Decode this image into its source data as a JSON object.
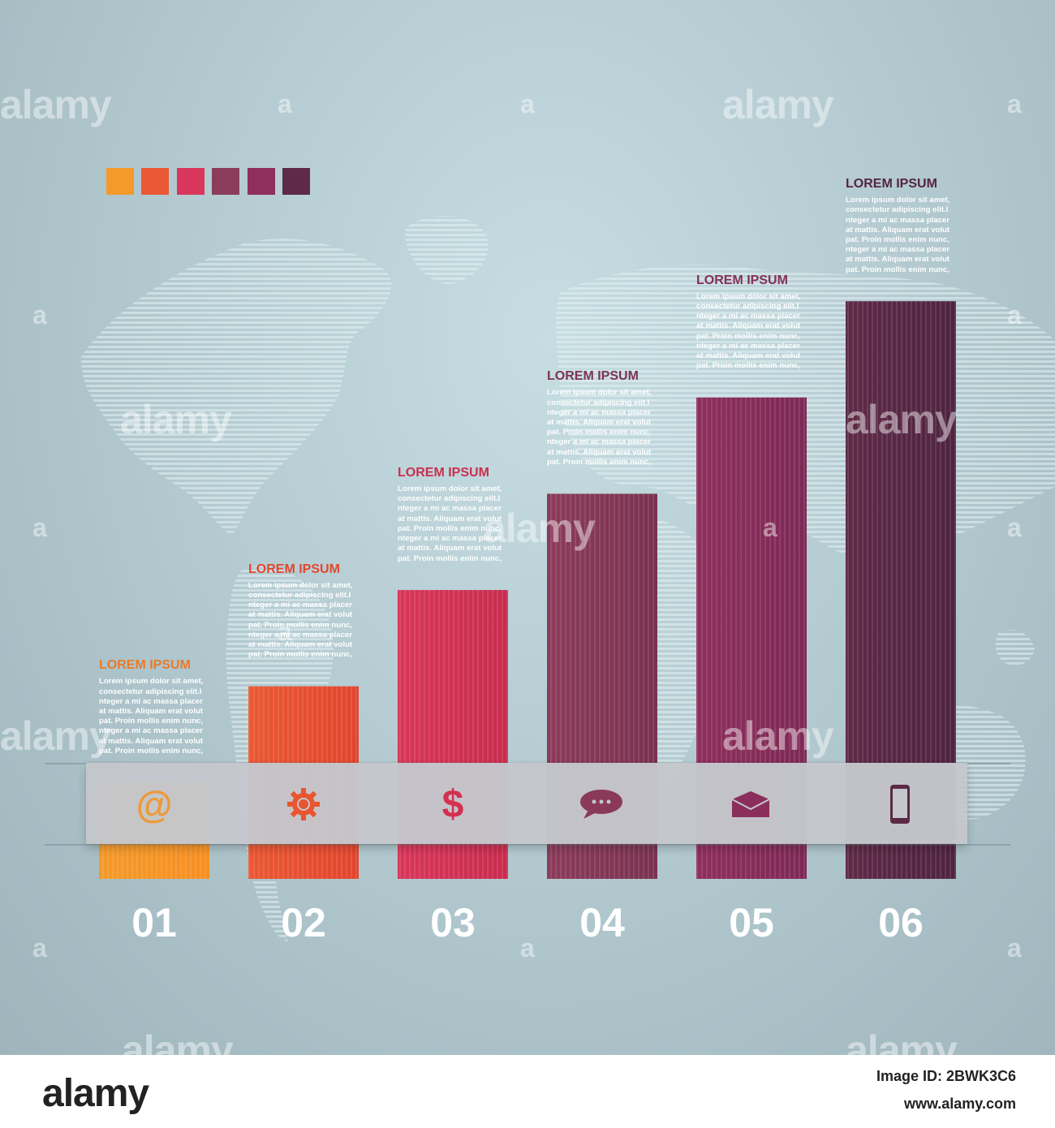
{
  "chart_data": {
    "type": "bar",
    "categories": [
      "01",
      "02",
      "03",
      "04",
      "05",
      "06"
    ],
    "values": [
      1,
      2,
      3,
      4,
      5,
      6
    ],
    "ylim": [
      0,
      6.6
    ],
    "grid": false,
    "colors_top": [
      "#f39a2a",
      "#ea5834",
      "#d8365a",
      "#8b3c5a",
      "#8e2f5c",
      "#5e2a47"
    ],
    "colors_bottom": [
      "#f78f22",
      "#e2452d",
      "#c92c4e",
      "#7a3250",
      "#7e2956",
      "#4f2440"
    ],
    "title_colors": [
      "#ea7a2a",
      "#e4472e",
      "#c9304f",
      "#7c3452",
      "#853057",
      "#55263f"
    ],
    "icons": [
      "at-icon",
      "gear-icon",
      "dollar-icon",
      "chat-bubble-icon",
      "envelope-icon",
      "smartphone-icon"
    ],
    "annotations": [
      {
        "title": "LOREM IPSUM",
        "body": [
          "Lorem ipsum dolor sit amet,",
          "consectetur adipiscing elit.I",
          "nteger a mi ac massa placer",
          "at mattis. Aliquam erat volut",
          "pat. Proin mollis enim nunc,",
          "nteger a mi ac massa placer",
          "at mattis. Aliquam erat volut",
          "pat. Proin mollis enim nunc,"
        ]
      },
      {
        "title": "LOREM IPSUM",
        "body": [
          "Lorem ipsum dolor sit amet,",
          "consectetur adipiscing elit.I",
          "nteger a mi ac massa placer",
          "at mattis. Aliquam erat volut",
          "pat. Proin mollis enim nunc,",
          "nteger a mi ac massa placer",
          "at mattis. Aliquam erat volut",
          "pat. Proin mollis enim nunc,"
        ]
      },
      {
        "title": "LOREM IPSUM",
        "body": [
          "Lorem ipsum dolor sit amet,",
          "consectetur adipiscing elit.I",
          "nteger a mi ac massa placer",
          "at mattis. Aliquam erat volut",
          "pat. Proin mollis enim nunc,",
          "nteger a mi ac massa placer",
          "at mattis. Aliquam erat volut",
          "pat. Proin mollis enim nunc,"
        ]
      },
      {
        "title": "LOREM IPSUM",
        "body": [
          "Lorem ipsum dolor sit amet,",
          "consectetur adipiscing elit.I",
          "nteger a mi ac massa placer",
          "at mattis. Aliquam erat volut",
          "pat. Proin mollis enim nunc,",
          "nteger a mi ac massa placer",
          "at mattis. Aliquam erat volut",
          "pat. Proin mollis enim nunc,"
        ]
      },
      {
        "title": "LOREM IPSUM",
        "body": [
          "Lorem ipsum dolor sit amet,",
          "consectetur adipiscing elit.I",
          "nteger a mi ac massa placer",
          "at mattis. Aliquam erat volut",
          "pat. Proin mollis enim nunc,",
          "nteger a mi ac massa placer",
          "at mattis. Aliquam erat volut",
          "pat. Proin mollis enim nunc,"
        ]
      },
      {
        "title": "LOREM IPSUM",
        "body": [
          "Lorem ipsum dolor sit amet,",
          "consectetur adipiscing elit.I",
          "nteger a mi ac massa placer",
          "at mattis. Aliquam erat volut",
          "pat. Proin mollis enim nunc,",
          "nteger a mi ac massa placer",
          "at mattis. Aliquam erat volut",
          "pat. Proin mollis enim nunc,"
        ]
      }
    ]
  },
  "legend_swatches": [
    "#f39a2a",
    "#ea5834",
    "#d8365a",
    "#8b3c5a",
    "#8e2f5c",
    "#5e2a47"
  ],
  "watermark": {
    "text": "alamy",
    "mark": "a"
  },
  "footer": {
    "logo": "alamy",
    "image_id": "Image ID: 2BWK3C6",
    "url": "www.alamy.com"
  },
  "colors": {
    "background": "#b7ced4",
    "shelf": "#c4c7cc",
    "map": "#dbecee"
  }
}
